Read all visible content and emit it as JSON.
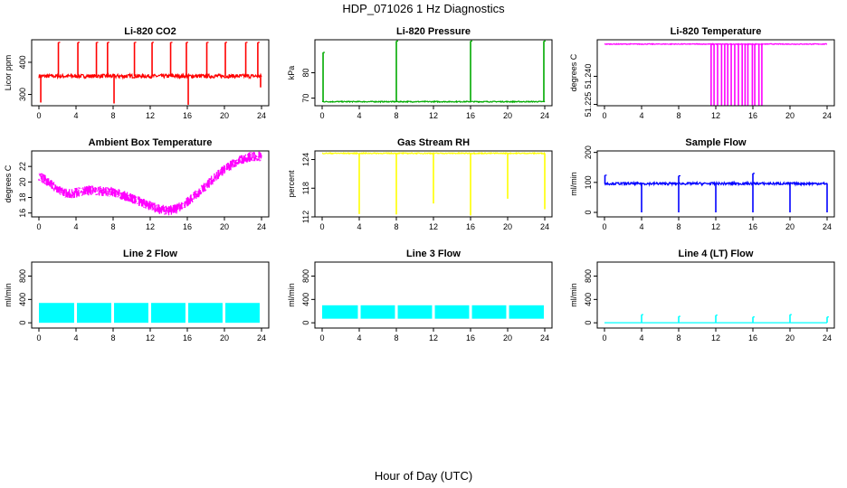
{
  "page": {
    "title": "HDP_071026  1 Hz Diagnostics",
    "xlabel": "Hour of Day (UTC)"
  },
  "chart_data": [
    {
      "type": "line",
      "title": "Li-820 CO2",
      "ylabel": "Licor ppm",
      "color": "#ff0000",
      "ylim": [
        265,
        470
      ],
      "yticks": [
        300,
        400
      ],
      "xlim": [
        0,
        24
      ],
      "xticks": [
        0,
        4,
        8,
        12,
        16,
        20,
        24
      ],
      "baseline": 357,
      "noise": 6,
      "spikes_up": [
        {
          "x": 2.1,
          "y": 462
        },
        {
          "x": 4.2,
          "y": 462
        },
        {
          "x": 6.2,
          "y": 462
        },
        {
          "x": 7.4,
          "y": 462
        },
        {
          "x": 10.3,
          "y": 462
        },
        {
          "x": 12.2,
          "y": 462
        },
        {
          "x": 14.2,
          "y": 462
        },
        {
          "x": 15.9,
          "y": 462
        },
        {
          "x": 18.1,
          "y": 462
        },
        {
          "x": 20.1,
          "y": 462
        },
        {
          "x": 22.3,
          "y": 462
        },
        {
          "x": 23.6,
          "y": 462
        }
      ],
      "spikes_down": [
        {
          "x": 0.2,
          "y": 275
        },
        {
          "x": 8.1,
          "y": 272
        },
        {
          "x": 16.1,
          "y": 268
        },
        {
          "x": 23.9,
          "y": 322
        }
      ]
    },
    {
      "type": "line",
      "title": "Li-820 Pressure",
      "ylabel": "kPa",
      "color": "#00aa00",
      "ylim": [
        67,
        93
      ],
      "yticks": [
        70,
        80
      ],
      "xlim": [
        0,
        24
      ],
      "xticks": [
        0,
        4,
        8,
        12,
        16,
        20,
        24
      ],
      "baseline": 68.6,
      "noise": 0.2,
      "spikes_up": [
        {
          "x": 0.1,
          "y": 88
        },
        {
          "x": 8.0,
          "y": 92.5
        },
        {
          "x": 16.0,
          "y": 92.5
        },
        {
          "x": 23.9,
          "y": 92.5
        }
      ],
      "spikes_down": []
    },
    {
      "type": "line",
      "title": "Li-820 Temperature",
      "ylabel": "degrees C",
      "color": "#ff00ff",
      "ylim": [
        51.2243,
        51.2595
      ],
      "yticks": [
        51.225,
        51.24
      ],
      "ytick_labels": [
        "51.225",
        "51.240"
      ],
      "xlim": [
        0,
        24
      ],
      "xticks": [
        0,
        4,
        8,
        12,
        16,
        20,
        24
      ],
      "baseline": 51.2572,
      "noise": 0.0002,
      "dropouts": {
        "x_start": 11.5,
        "x_end": 17.0,
        "low": 51.2243,
        "count": 16
      },
      "spikes_up": [],
      "spikes_down": []
    },
    {
      "type": "line",
      "title": "Ambient Box Temperature",
      "ylabel": "degrees C",
      "color": "#ff00ff",
      "ylim": [
        15.5,
        24
      ],
      "yticks": [
        16,
        18,
        20,
        22
      ],
      "xlim": [
        0,
        24
      ],
      "xticks": [
        0,
        4,
        8,
        12,
        16,
        20,
        24
      ],
      "band": 0.8,
      "curve": [
        [
          0,
          20.8
        ],
        [
          1,
          20.0
        ],
        [
          2,
          19.0
        ],
        [
          3,
          18.5
        ],
        [
          4,
          18.6
        ],
        [
          5,
          18.9
        ],
        [
          6,
          18.9
        ],
        [
          7,
          18.8
        ],
        [
          8,
          18.7
        ],
        [
          9,
          18.3
        ],
        [
          10,
          17.9
        ],
        [
          11,
          17.4
        ],
        [
          12,
          16.9
        ],
        [
          13,
          16.5
        ],
        [
          14,
          16.3
        ],
        [
          15,
          16.6
        ],
        [
          16,
          17.4
        ],
        [
          17,
          18.4
        ],
        [
          18,
          19.5
        ],
        [
          19,
          20.6
        ],
        [
          20,
          21.6
        ],
        [
          21,
          22.4
        ],
        [
          22,
          23.0
        ],
        [
          23,
          23.3
        ],
        [
          24,
          23.3
        ]
      ],
      "spikes_up": [],
      "spikes_down": []
    },
    {
      "type": "line",
      "title": "Gas Stream RH",
      "ylabel": "percent",
      "color": "#ffff00",
      "ylim": [
        112,
        125.8
      ],
      "yticks": [
        112,
        118,
        124
      ],
      "xlim": [
        0,
        24
      ],
      "xticks": [
        0,
        4,
        8,
        12,
        16,
        20,
        24
      ],
      "baseline": 125.3,
      "noise": 0.1,
      "spikes_up": [],
      "spikes_down": [
        {
          "x": 4.0,
          "y": 112.6
        },
        {
          "x": 8.0,
          "y": 112.5
        },
        {
          "x": 12.0,
          "y": 114.8
        },
        {
          "x": 16.0,
          "y": 112.3
        },
        {
          "x": 20.0,
          "y": 115.8
        },
        {
          "x": 24.0,
          "y": 113.6
        }
      ]
    },
    {
      "type": "line",
      "title": "Sample Flow",
      "ylabel": "ml/min",
      "color": "#0000ff",
      "ylim": [
        -15,
        205
      ],
      "yticks": [
        0,
        100,
        200
      ],
      "xlim": [
        0,
        24
      ],
      "xticks": [
        0,
        4,
        8,
        12,
        16,
        20,
        24
      ],
      "baseline": 96,
      "noise": 4,
      "spikes_up": [
        {
          "x": 0.05,
          "y": 124
        },
        {
          "x": 8.0,
          "y": 122
        },
        {
          "x": 16.0,
          "y": 130
        }
      ],
      "spikes_down": [
        {
          "x": 4.0,
          "y": 0
        },
        {
          "x": 8.0,
          "y": 0
        },
        {
          "x": 12.0,
          "y": 0
        },
        {
          "x": 16.0,
          "y": 0
        },
        {
          "x": 20.0,
          "y": 0
        },
        {
          "x": 24.0,
          "y": 0
        }
      ]
    },
    {
      "type": "bands",
      "title": "Line 2 Flow",
      "ylabel": "ml/min",
      "color": "#00ffff",
      "ylim": [
        -90,
        1040
      ],
      "yticks": [
        0,
        400,
        800
      ],
      "xlim": [
        0,
        24
      ],
      "xticks": [
        0,
        4,
        8,
        12,
        16,
        20,
        24
      ],
      "bands": [
        {
          "x0": 0.0,
          "x1": 3.8,
          "low": 0,
          "high": 340
        },
        {
          "x0": 4.1,
          "x1": 7.8,
          "low": 0,
          "high": 340
        },
        {
          "x0": 8.1,
          "x1": 11.8,
          "low": 0,
          "high": 340
        },
        {
          "x0": 12.1,
          "x1": 15.8,
          "low": 0,
          "high": 340
        },
        {
          "x0": 16.1,
          "x1": 19.8,
          "low": 0,
          "high": 340
        },
        {
          "x0": 20.1,
          "x1": 23.8,
          "low": 0,
          "high": 340
        }
      ]
    },
    {
      "type": "bands",
      "title": "Line 3 Flow",
      "ylabel": "ml/min",
      "color": "#00ffff",
      "ylim": [
        -90,
        1040
      ],
      "yticks": [
        0,
        400,
        800
      ],
      "xlim": [
        0,
        24
      ],
      "xticks": [
        0,
        4,
        8,
        12,
        16,
        20,
        24
      ],
      "bands": [
        {
          "x0": 0.0,
          "x1": 3.85,
          "low": 70,
          "high": 300
        },
        {
          "x0": 4.15,
          "x1": 7.85,
          "low": 70,
          "high": 300
        },
        {
          "x0": 8.15,
          "x1": 11.85,
          "low": 70,
          "high": 300
        },
        {
          "x0": 12.15,
          "x1": 15.85,
          "low": 70,
          "high": 300
        },
        {
          "x0": 16.15,
          "x1": 19.85,
          "low": 70,
          "high": 300
        },
        {
          "x0": 20.15,
          "x1": 23.9,
          "low": 70,
          "high": 300
        }
      ]
    },
    {
      "type": "line",
      "title": "Line 4 (LT) Flow",
      "ylabel": "ml/min",
      "color": "#00ffff",
      "ylim": [
        -90,
        1040
      ],
      "yticks": [
        0,
        400,
        800
      ],
      "xlim": [
        0,
        24
      ],
      "xticks": [
        0,
        4,
        8,
        12,
        16,
        20,
        24
      ],
      "baseline": 2,
      "noise": 0,
      "spikes_up": [
        {
          "x": 4.0,
          "y": 140
        },
        {
          "x": 8.0,
          "y": 110
        },
        {
          "x": 12.0,
          "y": 130
        },
        {
          "x": 16.0,
          "y": 100
        },
        {
          "x": 20.0,
          "y": 140
        },
        {
          "x": 24.0,
          "y": 100
        }
      ],
      "spikes_down": []
    }
  ]
}
